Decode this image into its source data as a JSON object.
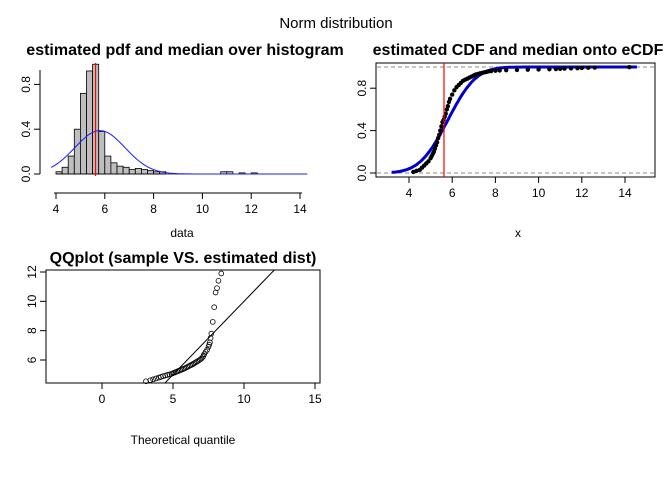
{
  "suptitle": "Norm distribution",
  "chart_data": [
    {
      "type": "bar",
      "title": "estimated pdf and median over histogram",
      "xlabel": "data",
      "ylabel": "",
      "xlim": [
        3.8,
        14.5
      ],
      "ylim": [
        0,
        1.0
      ],
      "xticks": [
        "4",
        "6",
        "8",
        "10",
        "12",
        "14"
      ],
      "yticks": [
        "0.0",
        "0.4",
        "0.8"
      ],
      "bin_width": 0.25,
      "bins_start": [
        4.0,
        4.25,
        4.5,
        4.75,
        5.0,
        5.25,
        5.5,
        5.75,
        6.0,
        6.25,
        6.5,
        6.75,
        7.0,
        7.25,
        7.5,
        7.75,
        8.0,
        8.25,
        10.75,
        11.0,
        11.5,
        12.0
      ],
      "densities": [
        0.02,
        0.06,
        0.16,
        0.4,
        0.72,
        0.92,
        0.98,
        0.38,
        0.16,
        0.1,
        0.07,
        0.06,
        0.04,
        0.05,
        0.04,
        0.03,
        0.02,
        0.02,
        0.02,
        0.02,
        0.01,
        0.01
      ],
      "median": 5.62,
      "pdf": {
        "mean": 5.8,
        "sd": 1.03,
        "color": "#1a1aff"
      },
      "median_color": "#ff0000"
    },
    {
      "type": "scatter",
      "title": "estimated CDF and median onto eCDF",
      "xlabel": "x",
      "ylabel": "",
      "xlim": [
        2.6,
        15.3
      ],
      "ylim": [
        -0.02,
        1.02
      ],
      "xticks": [
        "4",
        "6",
        "8",
        "10",
        "12",
        "14"
      ],
      "yticks": [
        "0.0",
        "0.4",
        "0.8"
      ],
      "median": 5.62,
      "cdf": {
        "mean": 5.8,
        "sd": 1.03,
        "color": "#0000cc"
      },
      "ecdf_points_x": [
        4.2,
        4.35,
        4.5,
        4.6,
        4.7,
        4.8,
        4.9,
        5.0,
        5.05,
        5.1,
        5.15,
        5.2,
        5.25,
        5.3,
        5.35,
        5.4,
        5.45,
        5.5,
        5.55,
        5.6,
        5.65,
        5.7,
        5.75,
        5.8,
        5.85,
        5.9,
        6.0,
        6.1,
        6.2,
        6.3,
        6.4,
        6.5,
        6.6,
        6.7,
        6.8,
        6.9,
        7.0,
        7.1,
        7.2,
        7.3,
        7.4,
        7.5,
        7.6,
        7.7,
        7.8,
        8.0,
        8.2,
        8.5,
        9.0,
        9.5,
        10.0,
        10.5,
        10.8,
        11.0,
        11.2,
        11.5,
        11.8,
        12.0,
        12.3,
        12.6,
        14.2
      ],
      "ecdf_points_y": [
        0.01,
        0.02,
        0.03,
        0.05,
        0.07,
        0.09,
        0.11,
        0.14,
        0.16,
        0.18,
        0.2,
        0.23,
        0.26,
        0.29,
        0.33,
        0.36,
        0.4,
        0.44,
        0.48,
        0.5,
        0.53,
        0.56,
        0.6,
        0.63,
        0.67,
        0.7,
        0.74,
        0.78,
        0.81,
        0.83,
        0.85,
        0.87,
        0.88,
        0.89,
        0.9,
        0.91,
        0.92,
        0.93,
        0.935,
        0.94,
        0.945,
        0.95,
        0.955,
        0.96,
        0.962,
        0.965,
        0.968,
        0.97,
        0.972,
        0.975,
        0.977,
        0.979,
        0.981,
        0.983,
        0.985,
        0.987,
        0.989,
        0.991,
        0.993,
        0.995,
        0.998
      ],
      "ref_lines_y": [
        0,
        1
      ],
      "median_color": "#ff0000"
    },
    {
      "type": "scatter",
      "title": "QQplot (sample VS. estimated dist)",
      "xlabel": "Theoretical quantile",
      "ylabel": "",
      "xlim": [
        -3.8,
        15.5
      ],
      "ylim": [
        4.2,
        12.5
      ],
      "xticks": [
        "0",
        "5",
        "10",
        "15"
      ],
      "yticks": [
        "6",
        "8",
        "10",
        "12"
      ],
      "points_x": [
        3.1,
        3.4,
        3.6,
        3.8,
        4.0,
        4.15,
        4.3,
        4.45,
        4.6,
        4.75,
        4.9,
        5.0,
        5.1,
        5.2,
        5.3,
        5.4,
        5.5,
        5.6,
        5.7,
        5.8,
        5.9,
        6.0,
        6.1,
        6.2,
        6.3,
        6.4,
        6.5,
        6.6,
        6.7,
        6.8,
        6.9,
        7.0,
        7.1,
        7.15,
        7.2,
        7.3,
        7.4,
        7.5,
        7.55,
        7.6,
        7.65,
        7.7,
        7.8,
        7.9,
        8.0,
        8.1,
        8.2,
        8.4
      ],
      "points_y": [
        4.55,
        4.62,
        4.68,
        4.74,
        4.8,
        4.85,
        4.9,
        4.94,
        4.98,
        5.02,
        5.06,
        5.1,
        5.14,
        5.18,
        5.22,
        5.26,
        5.3,
        5.34,
        5.38,
        5.42,
        5.47,
        5.52,
        5.57,
        5.62,
        5.67,
        5.72,
        5.78,
        5.84,
        5.9,
        5.96,
        6.02,
        6.1,
        6.2,
        6.3,
        6.4,
        6.55,
        6.7,
        6.9,
        7.05,
        7.2,
        7.5,
        7.8,
        8.6,
        9.6,
        10.6,
        10.9,
        11.4,
        11.9
      ],
      "ref_line": {
        "slope": 1.0,
        "intercept": 0.0
      }
    }
  ]
}
